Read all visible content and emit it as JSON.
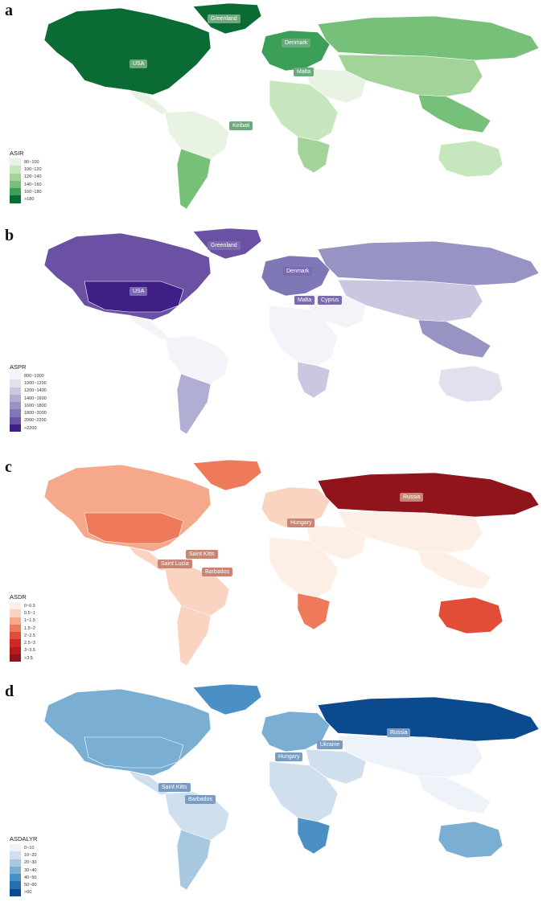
{
  "panels": [
    {
      "letter": "a",
      "legend_title": "ASIR",
      "legend": [
        {
          "label": "80~100",
          "color": "#e8f3e3"
        },
        {
          "label": "100~120",
          "color": "#c6e6bd"
        },
        {
          "label": "120~140",
          "color": "#a2d49a"
        },
        {
          "label": "140~160",
          "color": "#76c079"
        },
        {
          "label": "160~180",
          "color": "#3c9f58"
        },
        {
          "label": ">180",
          "color": "#0b6b35"
        }
      ],
      "labels": [
        "Greenland",
        "USA",
        "Denmark",
        "Malta",
        "Kiribati"
      ],
      "colors": {
        "northam": "#0b6b35",
        "greenland": "#0b6b35",
        "southam_n": "#e8f3e3",
        "southam_s": "#76c079",
        "europe": "#3c9f58",
        "russia": "#76c079",
        "asia": "#a2d49a",
        "seasia": "#76c079",
        "africa": "#c6e6bd",
        "safrica": "#a2d49a",
        "australia": "#c6e6bd",
        "mideast": "#e8f3e3"
      },
      "label_style": {
        "bg": "#6aaa7c",
        "fg": "#ffffff"
      }
    },
    {
      "letter": "b",
      "legend_title": "ASPR",
      "legend": [
        {
          "label": "800~1000",
          "color": "#f5f3f9"
        },
        {
          "label": "1000~1200",
          "color": "#e2e0ee"
        },
        {
          "label": "1200~1400",
          "color": "#cac8e1"
        },
        {
          "label": "1400~1600",
          "color": "#b0aed3"
        },
        {
          "label": "1600~1800",
          "color": "#9794c4"
        },
        {
          "label": "1800~2000",
          "color": "#7e79b6"
        },
        {
          "label": "2000~2200",
          "color": "#6a51a3"
        },
        {
          "label": ">2200",
          "color": "#3f1f86"
        }
      ],
      "labels": [
        "Greenland",
        "USA",
        "Denmark",
        "Malta",
        "Cyprus"
      ],
      "colors": {
        "northam": "#6a51a3",
        "greenland": "#6a51a3",
        "southam_n": "#f5f3f9",
        "southam_s": "#b0aed3",
        "europe": "#7e79b6",
        "russia": "#9794c4",
        "asia": "#cac8e1",
        "seasia": "#9794c4",
        "africa": "#f5f3f9",
        "safrica": "#cac8e1",
        "australia": "#e2e0ee",
        "mideast": "#f5f3f9",
        "usa": "#3f1f86"
      },
      "label_style": {
        "bg": "#7a6ab0",
        "fg": "#ffffff"
      }
    },
    {
      "letter": "c",
      "legend_title": "ASDR",
      "legend": [
        {
          "label": "0~0.5",
          "color": "#fdeee6"
        },
        {
          "label": "0.5~1",
          "color": "#fbd3c1"
        },
        {
          "label": "1~1.5",
          "color": "#f5a98a"
        },
        {
          "label": "1.5~2",
          "color": "#ef7a5b"
        },
        {
          "label": "2~2.5",
          "color": "#e24d38"
        },
        {
          "label": "2.5~3",
          "color": "#cb2a26"
        },
        {
          "label": "3~3.5",
          "color": "#b31a1c"
        },
        {
          "label": ">3.5",
          "color": "#8f141b"
        }
      ],
      "labels": [
        "Russia",
        "Hungary",
        "Saint Kitts",
        "Saint Lucia",
        "Barbados"
      ],
      "colors": {
        "northam": "#f5a98a",
        "greenland": "#ef7a5b",
        "southam_n": "#fbd3c1",
        "southam_s": "#fbd3c1",
        "europe": "#fbd3c1",
        "russia": "#8f141b",
        "asia": "#fdeee6",
        "seasia": "#fdeee6",
        "africa": "#fdeee6",
        "safrica": "#ef7a5b",
        "australia": "#e24d38",
        "mideast": "#fdeee6",
        "usa": "#ef7a5b"
      },
      "label_style": {
        "bg": "#c98474",
        "fg": "#ffffff"
      }
    },
    {
      "letter": "d",
      "legend_title": "ASDALYR",
      "legend": [
        {
          "label": "0~10",
          "color": "#eef3fa"
        },
        {
          "label": "10~20",
          "color": "#cfdfee"
        },
        {
          "label": "20~30",
          "color": "#a8c8e0"
        },
        {
          "label": "30~40",
          "color": "#7aafd3"
        },
        {
          "label": "40~50",
          "color": "#4a90c4"
        },
        {
          "label": "50~60",
          "color": "#2570b1"
        },
        {
          "label": ">60",
          "color": "#0c4a8e"
        }
      ],
      "labels": [
        "Russia",
        "Ukraine",
        "Hungary",
        "Saint Kitts",
        "Barbados"
      ],
      "colors": {
        "northam": "#7aafd3",
        "greenland": "#4a90c4",
        "southam_n": "#cfdfee",
        "southam_s": "#a8c8e0",
        "europe": "#7aafd3",
        "russia": "#0c4a8e",
        "asia": "#eef3fa",
        "seasia": "#eef3fa",
        "africa": "#cfdfee",
        "safrica": "#4a90c4",
        "australia": "#7aafd3",
        "mideast": "#cfdfee",
        "usa": "#7aafd3"
      },
      "label_style": {
        "bg": "#7b9cc2",
        "fg": "#ffffff"
      }
    }
  ]
}
